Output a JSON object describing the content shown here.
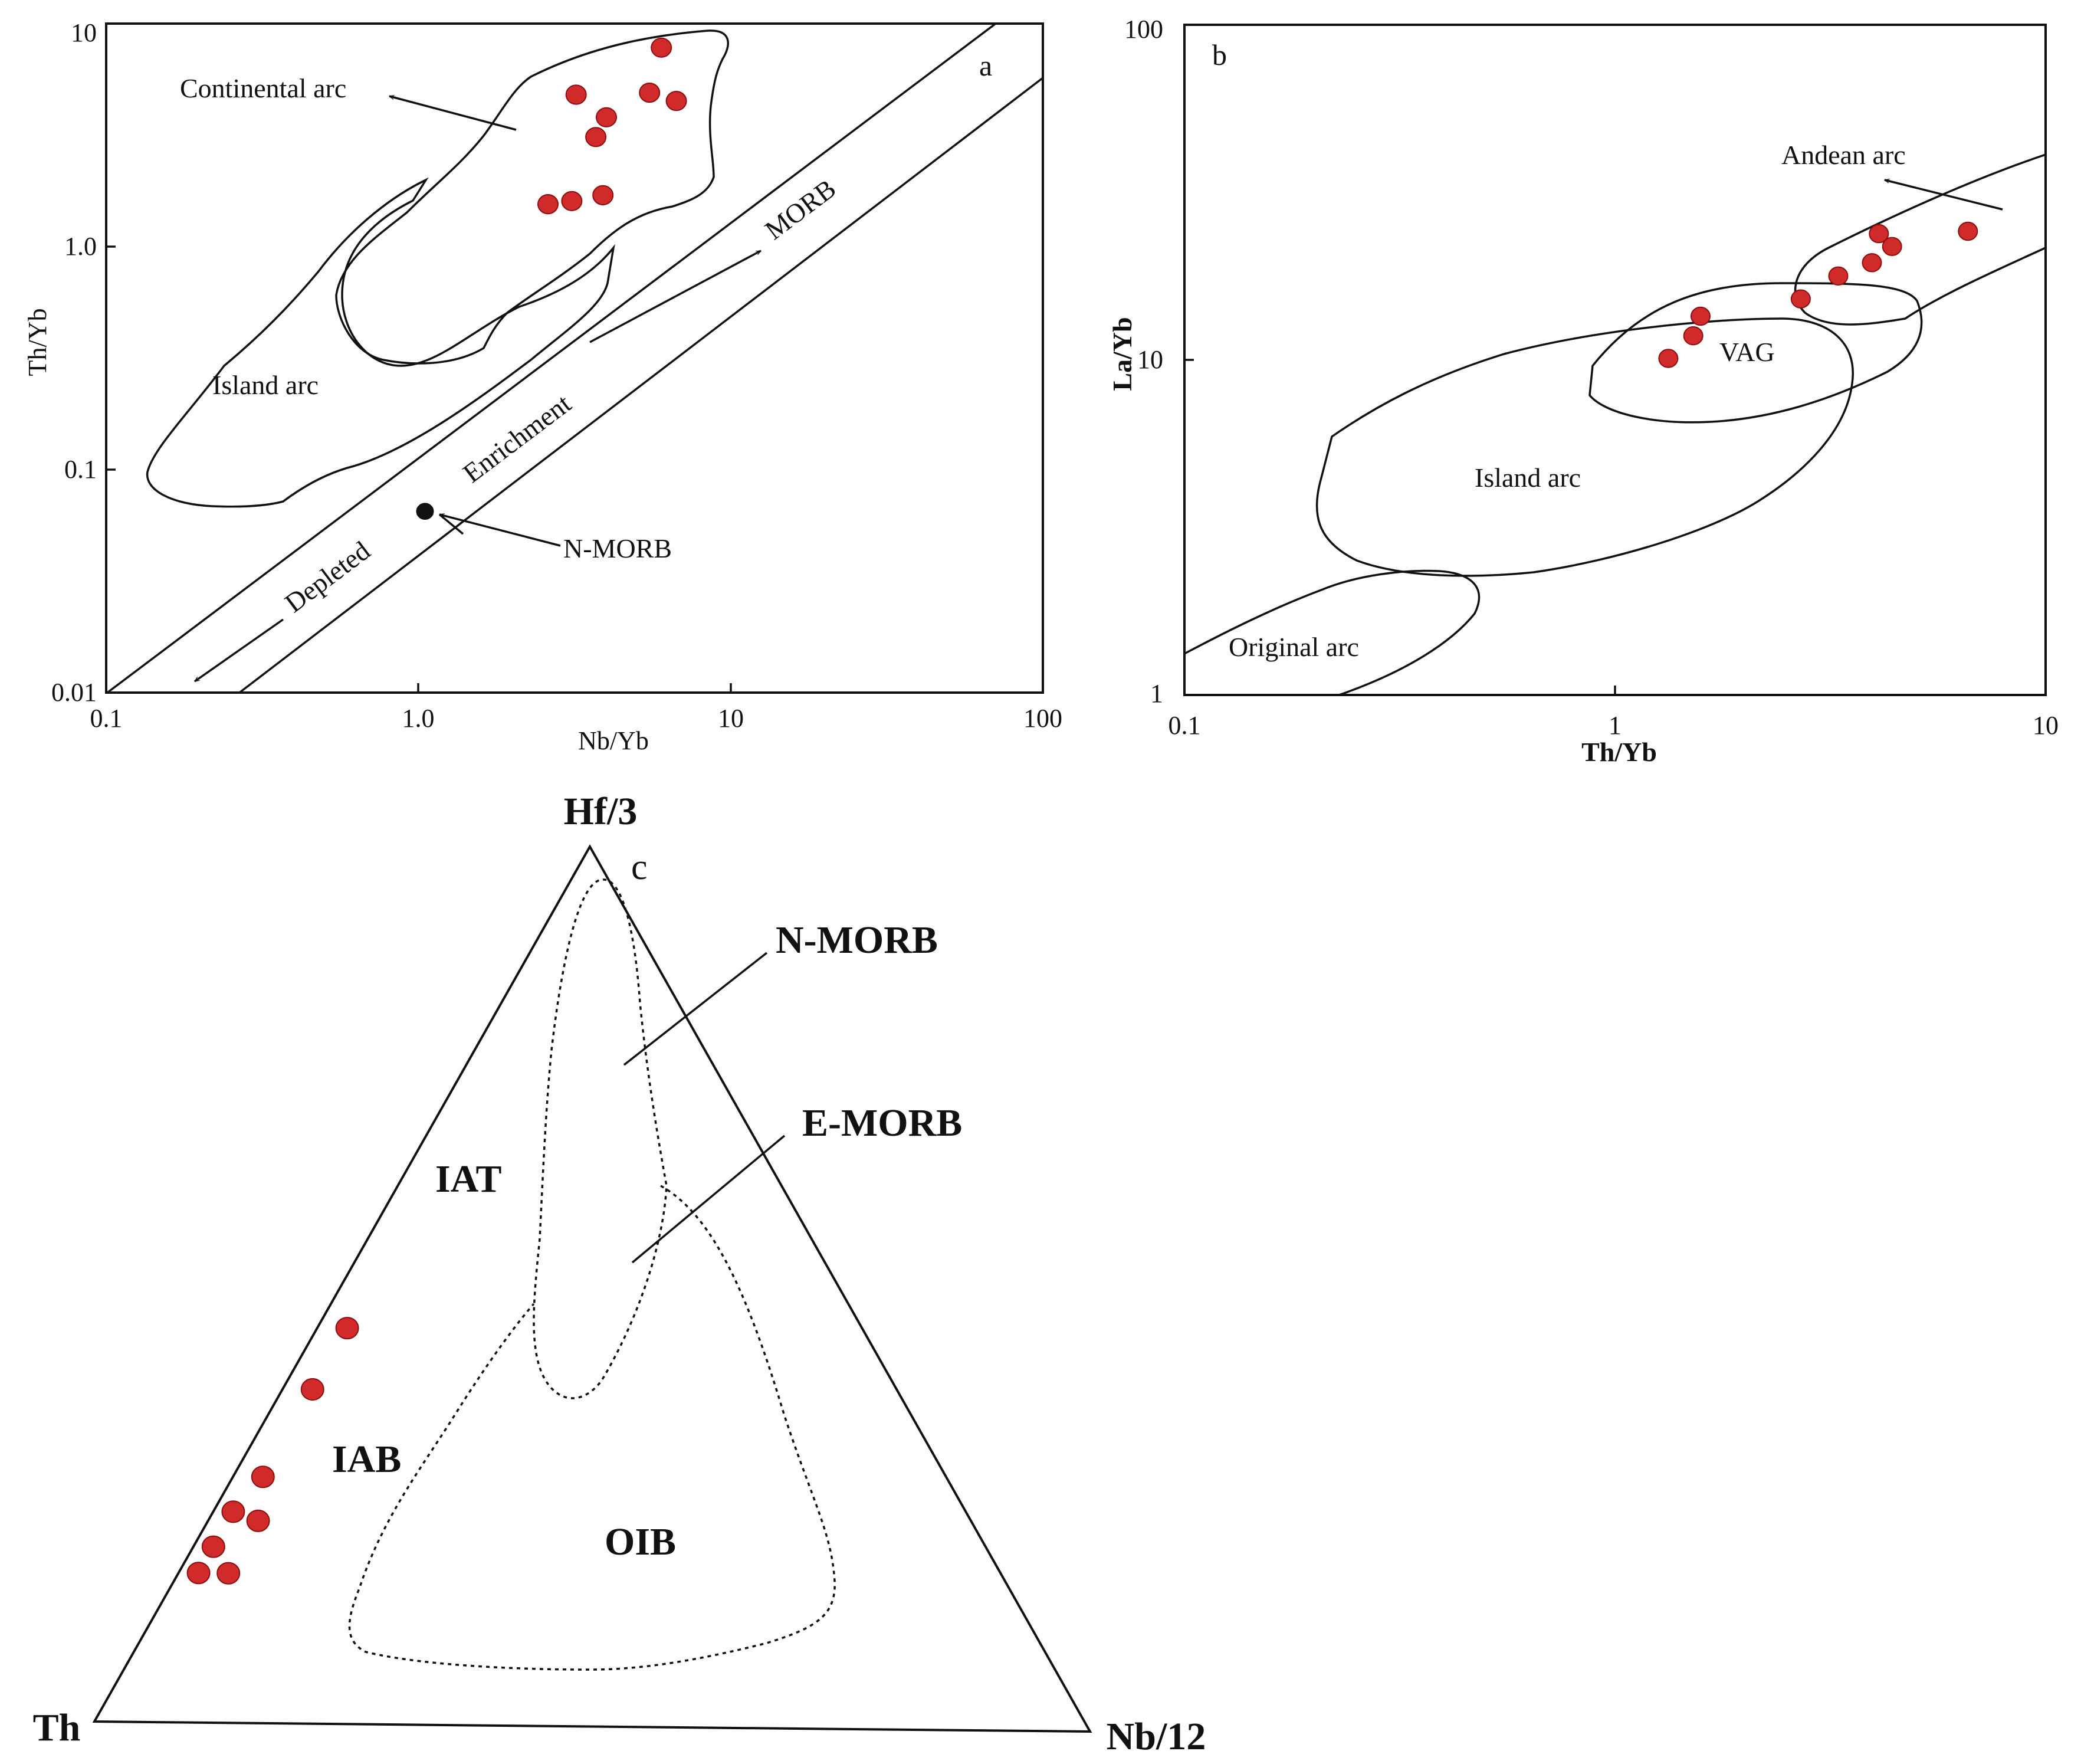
{
  "figure": {
    "colors": {
      "sample": "#d12a2a",
      "sample_stroke": "#8a1010",
      "line": "#111111",
      "nmorb_point": "#111111"
    }
  },
  "chart_data": [
    {
      "panel": "a",
      "type": "scatter",
      "scale": "log-log",
      "xlabel": "Nb/Yb",
      "ylabel": "Th/Yb",
      "xlim": [
        0.1,
        100
      ],
      "ylim": [
        0.01,
        10
      ],
      "x_ticks": [
        "0.1",
        "1.0",
        "10",
        "100"
      ],
      "y_ticks": [
        "0.01",
        "0.1",
        "1.0",
        "10"
      ],
      "fields": {
        "continental_arc": "Continental arc",
        "island_arc": "Island arc"
      },
      "annotations": {
        "morb": "MORB",
        "enrichment": "Enrichment",
        "depleted": "Depleted",
        "nmorb": "N-MORB"
      },
      "nmorb_point": {
        "x": 1.05,
        "y": 0.065
      },
      "series": [
        {
          "name": "Samples",
          "x": [
            6.0,
            3.2,
            4.0,
            3.7,
            5.5,
            6.7,
            2.6,
            3.1,
            3.9
          ],
          "y": [
            7.8,
            4.8,
            3.8,
            3.1,
            4.9,
            4.5,
            1.55,
            1.6,
            1.7
          ]
        }
      ]
    },
    {
      "panel": "b",
      "type": "scatter",
      "scale": "log-log",
      "xlabel": "Th/Yb",
      "ylabel": "La/Yb",
      "xlim": [
        0.1,
        10
      ],
      "ylim": [
        1,
        100
      ],
      "x_ticks": [
        "0.1",
        "1",
        "10"
      ],
      "y_ticks": [
        "1",
        "10",
        "100"
      ],
      "fields": {
        "andean_arc": "Andean arc",
        "vag": "VAG",
        "island_arc": "Island arc",
        "original_arc": "Original arc"
      },
      "series": [
        {
          "name": "Samples",
          "x": [
            1.33,
            1.52,
            1.58,
            2.7,
            3.3,
            3.95,
            4.1,
            4.4,
            6.6
          ],
          "y": [
            10.1,
            11.8,
            13.5,
            15.2,
            17.8,
            19.5,
            23.8,
            21.8,
            24.2
          ]
        }
      ]
    },
    {
      "panel": "c",
      "type": "ternary",
      "apices": {
        "top": "Hf/3",
        "left": "Th",
        "right": "Nb/12"
      },
      "fields": {
        "nmorb": "N-MORB",
        "emorb": "E-MORB",
        "iat": "IAT",
        "iab": "IAB",
        "oib": "OIB"
      },
      "series": [
        {
          "name": "Samples",
          "points": [
            {
              "hf3": 0.45,
              "th": 0.52,
              "nb12": 0.03
            },
            {
              "hf3": 0.38,
              "th": 0.59,
              "nb12": 0.03
            },
            {
              "hf3": 0.28,
              "th": 0.69,
              "nb12": 0.03
            },
            {
              "hf3": 0.24,
              "th": 0.74,
              "nb12": 0.02
            },
            {
              "hf3": 0.23,
              "th": 0.72,
              "nb12": 0.05
            },
            {
              "hf3": 0.2,
              "th": 0.78,
              "nb12": 0.02
            },
            {
              "hf3": 0.17,
              "th": 0.81,
              "nb12": 0.02
            },
            {
              "hf3": 0.17,
              "th": 0.78,
              "nb12": 0.05
            }
          ]
        }
      ]
    }
  ]
}
